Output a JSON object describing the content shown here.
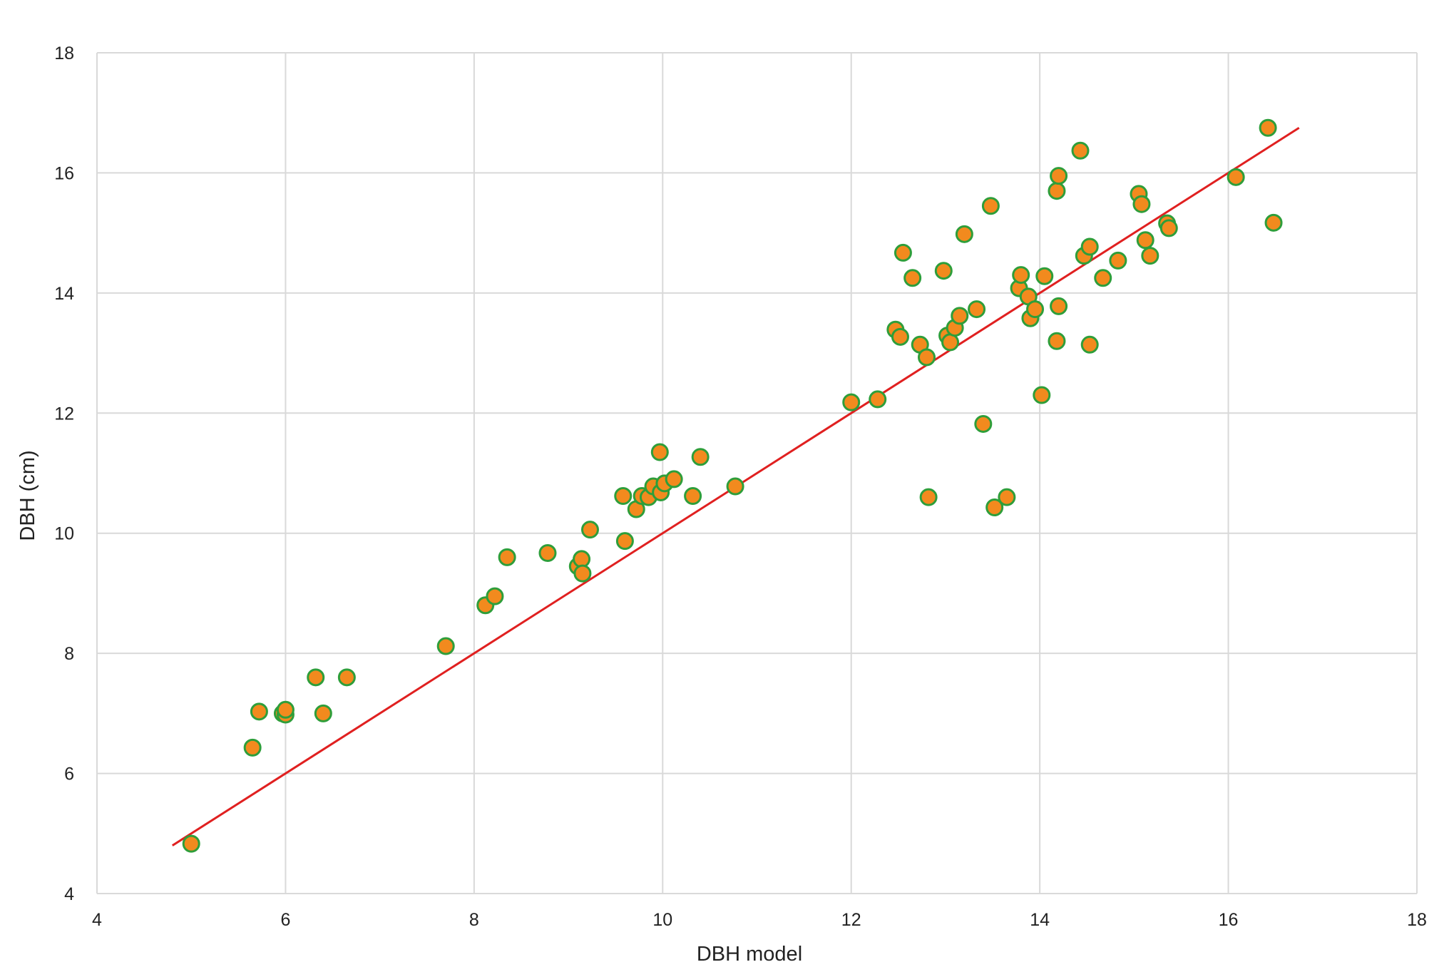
{
  "chart_data": {
    "type": "scatter",
    "title": "",
    "xlabel": "DBH model",
    "ylabel": "DBH (cm)",
    "xlim": [
      4,
      18
    ],
    "ylim": [
      4,
      18
    ],
    "x_ticks": [
      "4",
      "6",
      "8",
      "10",
      "12",
      "14",
      "16",
      "18"
    ],
    "y_ticks": [
      "4",
      "6",
      "8",
      "10",
      "12",
      "14",
      "16",
      "18"
    ],
    "grid": true,
    "legend": "none",
    "colors": {
      "marker_fill": "#f28a1e",
      "marker_edge": "#2e9e3a",
      "line": "#e02020",
      "grid": "#d9d9d9"
    },
    "series": [
      {
        "type": "scatter",
        "points": [
          [
            5.0,
            4.83
          ],
          [
            5.65,
            6.43
          ],
          [
            5.72,
            7.03
          ],
          [
            5.97,
            7.0
          ],
          [
            6.0,
            6.98
          ],
          [
            6.0,
            7.06
          ],
          [
            6.32,
            7.6
          ],
          [
            6.4,
            7.0
          ],
          [
            6.65,
            7.6
          ],
          [
            7.7,
            8.12
          ],
          [
            8.12,
            8.8
          ],
          [
            8.22,
            8.95
          ],
          [
            8.35,
            9.6
          ],
          [
            8.78,
            9.67
          ],
          [
            9.1,
            9.45
          ],
          [
            9.14,
            9.57
          ],
          [
            9.15,
            9.33
          ],
          [
            9.23,
            10.06
          ],
          [
            9.58,
            10.62
          ],
          [
            9.6,
            9.87
          ],
          [
            9.72,
            10.4
          ],
          [
            9.78,
            10.62
          ],
          [
            9.85,
            10.6
          ],
          [
            9.9,
            10.78
          ],
          [
            9.97,
            11.35
          ],
          [
            9.98,
            10.68
          ],
          [
            10.02,
            10.83
          ],
          [
            10.12,
            10.9
          ],
          [
            10.32,
            10.62
          ],
          [
            10.4,
            11.27
          ],
          [
            10.77,
            10.78
          ],
          [
            12.0,
            12.18
          ],
          [
            12.28,
            12.23
          ],
          [
            12.47,
            13.39
          ],
          [
            12.52,
            13.27
          ],
          [
            12.55,
            14.67
          ],
          [
            12.65,
            14.25
          ],
          [
            12.73,
            13.14
          ],
          [
            12.8,
            12.93
          ],
          [
            12.82,
            10.6
          ],
          [
            12.98,
            14.37
          ],
          [
            13.02,
            13.29
          ],
          [
            13.05,
            13.18
          ],
          [
            13.1,
            13.42
          ],
          [
            13.15,
            13.62
          ],
          [
            13.2,
            14.98
          ],
          [
            13.33,
            13.73
          ],
          [
            13.4,
            11.82
          ],
          [
            13.48,
            15.45
          ],
          [
            13.52,
            10.43
          ],
          [
            13.65,
            10.6
          ],
          [
            13.78,
            14.08
          ],
          [
            13.8,
            14.3
          ],
          [
            13.88,
            13.94
          ],
          [
            13.9,
            13.58
          ],
          [
            13.95,
            13.73
          ],
          [
            14.02,
            12.3
          ],
          [
            14.05,
            14.28
          ],
          [
            14.18,
            13.2
          ],
          [
            14.18,
            15.7
          ],
          [
            14.2,
            15.95
          ],
          [
            14.2,
            13.78
          ],
          [
            14.43,
            16.37
          ],
          [
            14.47,
            14.62
          ],
          [
            14.53,
            14.77
          ],
          [
            14.53,
            13.14
          ],
          [
            14.67,
            14.25
          ],
          [
            14.83,
            14.54
          ],
          [
            15.05,
            15.65
          ],
          [
            15.08,
            15.48
          ],
          [
            15.12,
            14.88
          ],
          [
            15.17,
            14.62
          ],
          [
            15.35,
            15.16
          ],
          [
            15.37,
            15.08
          ],
          [
            16.08,
            15.93
          ],
          [
            16.42,
            16.75
          ],
          [
            16.48,
            15.17
          ]
        ]
      },
      {
        "type": "line",
        "points": [
          [
            4.8,
            4.8
          ],
          [
            16.75,
            16.75
          ]
        ]
      }
    ]
  }
}
